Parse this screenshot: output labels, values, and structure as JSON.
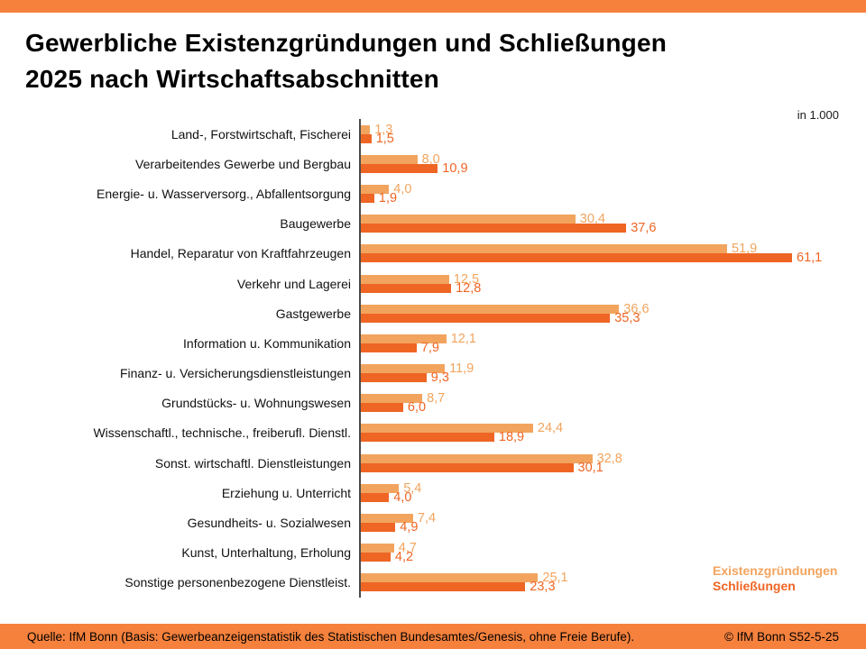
{
  "header": {
    "title_line1": "Gewerbliche Existenzgründungen und Schließungen",
    "title_line2": "2025 nach Wirtschaftsabschnitten"
  },
  "chart_data": {
    "type": "bar",
    "orientation": "horizontal",
    "unit_label": "in 1.000",
    "title": "Gewerbliche Existenzgründungen und Schließungen 2025 nach Wirtschaftsabschnitten",
    "categories": [
      "Land-, Forstwirtschaft, Fischerei",
      "Verarbeitendes Gewerbe und Bergbau",
      "Energie- u. Wasserversorg.,  Abfallentsorgung",
      "Baugewerbe",
      "Handel, Reparatur von Kraftfahrzeugen",
      "Verkehr und Lagerei",
      "Gastgewerbe",
      "Information u. Kommunikation",
      "Finanz- u. Versicherungsdienstleistungen",
      "Grundstücks- u. Wohnungswesen",
      "Wissenschaftl., technische., freiberufl. Dienstl.",
      "Sonst. wirtschaftl. Dienstleistungen",
      "Erziehung u. Unterricht",
      "Gesundheits- u. Sozialwesen",
      "Kunst, Unterhaltung, Erholung",
      "Sonstige personenbezogene Dienstleist."
    ],
    "series": [
      {
        "name": "Existenzgründungen",
        "color": "#F2A45E",
        "values": [
          1.3,
          8.0,
          4.0,
          30.4,
          51.9,
          12.5,
          36.6,
          12.1,
          11.9,
          8.7,
          24.4,
          32.8,
          5.4,
          7.4,
          4.7,
          25.1
        ]
      },
      {
        "name": "Schließungen",
        "color": "#EE6524",
        "values": [
          1.5,
          10.9,
          1.9,
          37.6,
          61.1,
          12.8,
          35.3,
          7.9,
          9.3,
          6.0,
          18.9,
          30.1,
          4.0,
          4.9,
          4.2,
          23.3
        ]
      }
    ],
    "xlim": [
      0,
      68
    ],
    "grid": false,
    "value_labels": "de-decimal-comma-1dp",
    "legend_position": "bottom-right"
  },
  "legend": {
    "series1": "Existenzgründungen",
    "series2": "Schließungen"
  },
  "footer": {
    "source": "Quelle: IfM Bonn (Basis: Gewerbeanzeigenstatistik des Statistischen Bundesamtes/Genesis, ohne Freie Berufe).",
    "copyright": "© IfM Bonn  S52-5-25"
  },
  "colors": {
    "accent_stripe": "#F5813C",
    "footer_bar": "#F5813C",
    "existenzgruendungen": "#F2A45E",
    "schliessungen": "#EE6524",
    "axis_line": "#4A4A4A"
  }
}
